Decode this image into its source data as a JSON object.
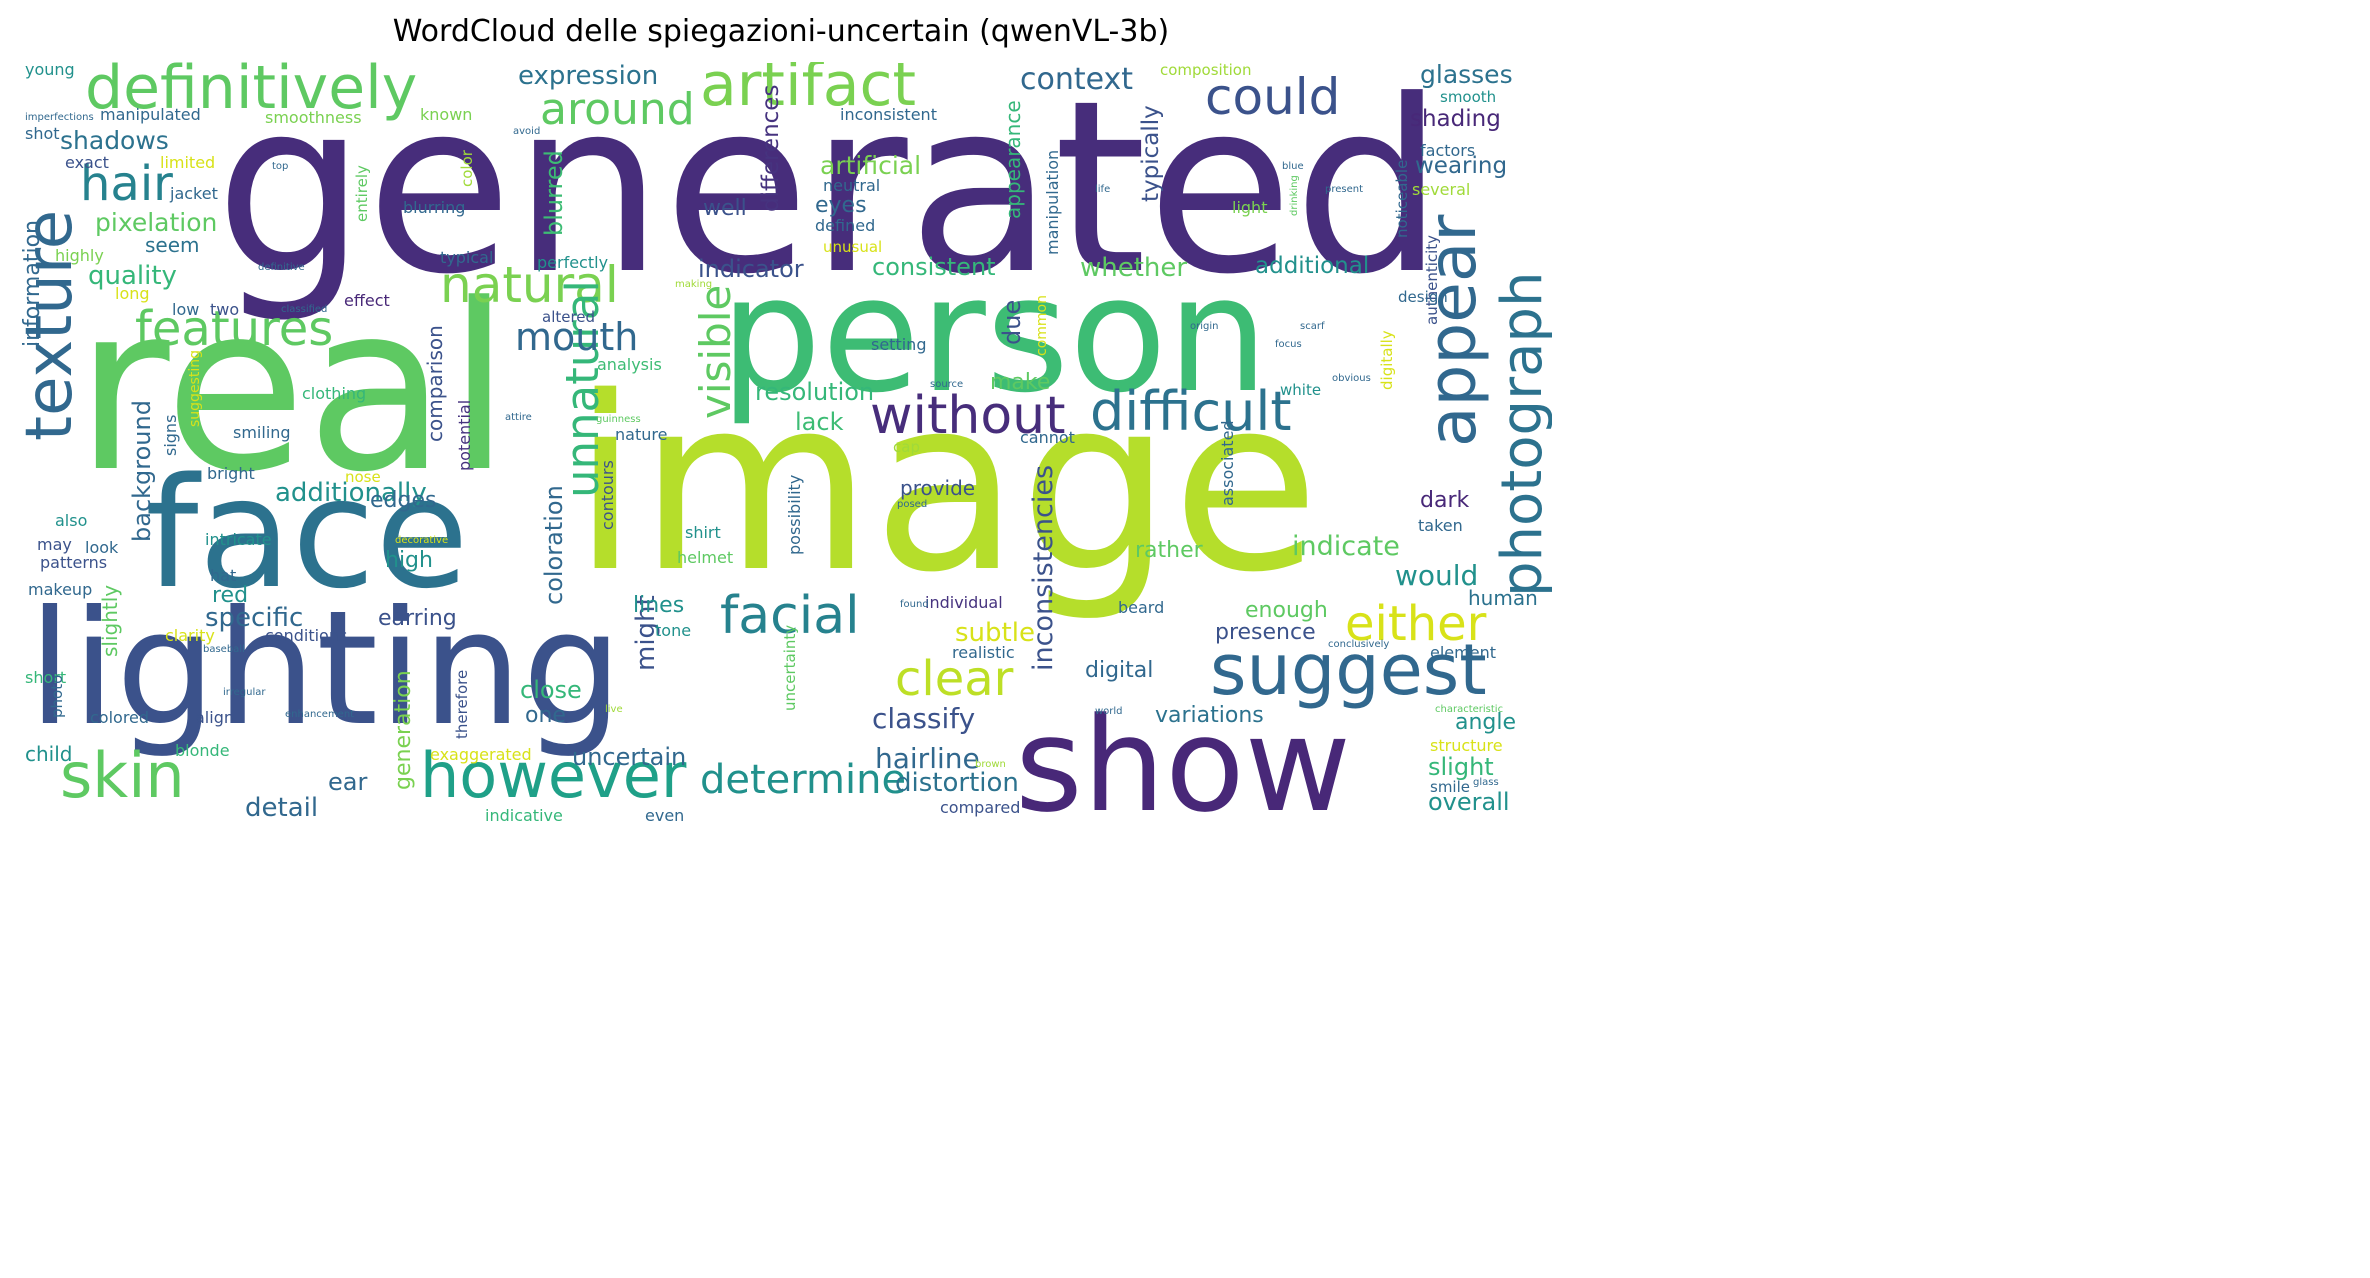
{
  "title": "WordCloud delle spiegazioni-uncertain (qwenVL-3b)",
  "words": [
    {
      "t": "generated",
      "c": "#472d7b"
    },
    {
      "t": "image",
      "c": "#b5de2b"
    },
    {
      "t": "real",
      "c": "#5ec962"
    },
    {
      "t": "person",
      "c": "#3dbc74"
    },
    {
      "t": "lighting",
      "c": "#3b528b"
    },
    {
      "t": "face",
      "c": "#2c728e"
    },
    {
      "t": "show",
      "c": "#482878"
    },
    {
      "t": "definitively",
      "c": "#5ec962"
    },
    {
      "t": "artifact",
      "c": "#7ad151"
    },
    {
      "t": "texture",
      "c": "#31688e"
    },
    {
      "t": "appear",
      "c": "#31688e"
    },
    {
      "t": "photograph",
      "c": "#2c728e"
    },
    {
      "t": "suggest",
      "c": "#31688e"
    },
    {
      "t": "skin",
      "c": "#5ec962"
    },
    {
      "t": "however",
      "c": "#1fa088"
    },
    {
      "t": "difficult",
      "c": "#2c728e"
    },
    {
      "t": "without",
      "c": "#472d7b"
    },
    {
      "t": "could",
      "c": "#3b528b"
    },
    {
      "t": "natural",
      "c": "#7ad151"
    },
    {
      "t": "features",
      "c": "#5ec962"
    },
    {
      "t": "facial",
      "c": "#26828e"
    },
    {
      "t": "either",
      "c": "#d8e219"
    },
    {
      "t": "clear",
      "c": "#bddf26"
    },
    {
      "t": "hair",
      "c": "#26828e"
    },
    {
      "t": "around",
      "c": "#5ec962"
    },
    {
      "t": "unnatural",
      "c": "#35b779"
    },
    {
      "t": "visible",
      "c": "#5ec962"
    },
    {
      "t": "mouth",
      "c": "#31688e"
    },
    {
      "t": "determine",
      "c": "#21918c"
    },
    {
      "t": "context",
      "c": "#31688e"
    },
    {
      "t": "expression",
      "c": "#2c728e"
    },
    {
      "t": "glasses",
      "c": "#2c728e"
    },
    {
      "t": "shading",
      "c": "#482878"
    },
    {
      "t": "wearing",
      "c": "#31688e"
    },
    {
      "t": "shadows",
      "c": "#2c728e"
    },
    {
      "t": "pixelation",
      "c": "#5ec962"
    },
    {
      "t": "quality",
      "c": "#35b779"
    },
    {
      "t": "additionally",
      "c": "#21918c"
    },
    {
      "t": "specific",
      "c": "#31688e"
    },
    {
      "t": "classify",
      "c": "#3b528b"
    },
    {
      "t": "inconsistencies",
      "c": "#3b528b"
    },
    {
      "t": "indicate",
      "c": "#5ec962"
    },
    {
      "t": "would",
      "c": "#21918c"
    },
    {
      "t": "hairline",
      "c": "#31688e"
    },
    {
      "t": "distortion",
      "c": "#2c728e"
    },
    {
      "t": "consistent",
      "c": "#35b779"
    },
    {
      "t": "whether",
      "c": "#5ec962"
    },
    {
      "t": "additional",
      "c": "#21918c"
    },
    {
      "t": "indicator",
      "c": "#3b528b"
    },
    {
      "t": "typically",
      "c": "#3b528b"
    },
    {
      "t": "differences",
      "c": "#46337f"
    },
    {
      "t": "artificial",
      "c": "#7ad151"
    },
    {
      "t": "resolution",
      "c": "#35b779"
    },
    {
      "t": "background",
      "c": "#31688e"
    },
    {
      "t": "information",
      "c": "#31688e"
    },
    {
      "t": "blurred",
      "c": "#3dbc74"
    },
    {
      "t": "coloration",
      "c": "#31688e"
    },
    {
      "t": "might",
      "c": "#3b528b"
    },
    {
      "t": "detail",
      "c": "#31688e"
    },
    {
      "t": "uncertain",
      "c": "#31688e"
    },
    {
      "t": "subtle",
      "c": "#d8e219"
    },
    {
      "t": "presence",
      "c": "#3b528b"
    },
    {
      "t": "enough",
      "c": "#5ec962"
    },
    {
      "t": "rather",
      "c": "#5ec962"
    },
    {
      "t": "human",
      "c": "#2c728e"
    },
    {
      "t": "digital",
      "c": "#31688e"
    },
    {
      "t": "variations",
      "c": "#2c728e"
    },
    {
      "t": "angle",
      "c": "#21918c"
    },
    {
      "t": "slight",
      "c": "#35b779"
    },
    {
      "t": "overall",
      "c": "#21918c"
    },
    {
      "t": "edges",
      "c": "#31688e"
    },
    {
      "t": "lack",
      "c": "#3dbc74"
    },
    {
      "t": "make",
      "c": "#5ec962"
    },
    {
      "t": "due",
      "c": "#3b528b"
    },
    {
      "t": "provide",
      "c": "#3b528b"
    },
    {
      "t": "dark",
      "c": "#482878"
    },
    {
      "t": "close",
      "c": "#35b779"
    },
    {
      "t": "one",
      "c": "#31688e"
    },
    {
      "t": "high",
      "c": "#21918c"
    },
    {
      "t": "earring",
      "c": "#3b528b"
    },
    {
      "t": "red",
      "c": "#21918c"
    },
    {
      "t": "lines",
      "c": "#21918c"
    },
    {
      "t": "comparison",
      "c": "#3b528b"
    },
    {
      "t": "ear",
      "c": "#31688e"
    },
    {
      "t": "generation",
      "c": "#7ad151"
    },
    {
      "t": "slightly",
      "c": "#5ec962"
    },
    {
      "t": "eyes",
      "c": "#31688e"
    },
    {
      "t": "well",
      "c": "#3b528b"
    },
    {
      "t": "seem",
      "c": "#2c728e"
    },
    {
      "t": "appearance",
      "c": "#35b779"
    },
    {
      "t": "young",
      "c": "#21918c"
    },
    {
      "t": "shot",
      "c": "#31688e"
    },
    {
      "t": "manipulated",
      "c": "#31688e"
    },
    {
      "t": "smoothness",
      "c": "#7ad151"
    },
    {
      "t": "known",
      "c": "#7ad151"
    },
    {
      "t": "inconsistent",
      "c": "#31688e"
    },
    {
      "t": "composition",
      "c": "#a0da39"
    },
    {
      "t": "smooth",
      "c": "#21918c"
    },
    {
      "t": "exact",
      "c": "#3b528b"
    },
    {
      "t": "limited",
      "c": "#d8e219"
    },
    {
      "t": "color",
      "c": "#a0da39"
    },
    {
      "t": "jacket",
      "c": "#31688e"
    },
    {
      "t": "factors",
      "c": "#31688e"
    },
    {
      "t": "several",
      "c": "#a0da39"
    },
    {
      "t": "light",
      "c": "#7ad151"
    },
    {
      "t": "neutral",
      "c": "#31688e"
    },
    {
      "t": "defined",
      "c": "#31688e"
    },
    {
      "t": "unusual",
      "c": "#d8e219"
    },
    {
      "t": "highly",
      "c": "#7ad151"
    },
    {
      "t": "entirely",
      "c": "#5ec962"
    },
    {
      "t": "blurring",
      "c": "#31688e"
    },
    {
      "t": "perfectly",
      "c": "#21918c"
    },
    {
      "t": "typical",
      "c": "#31688e"
    },
    {
      "t": "long",
      "c": "#d8e219"
    },
    {
      "t": "low",
      "c": "#31688e"
    },
    {
      "t": "two",
      "c": "#3b528b"
    },
    {
      "t": "effect",
      "c": "#482878"
    },
    {
      "t": "altered",
      "c": "#3b528b"
    },
    {
      "t": "analysis",
      "c": "#3dbc74"
    },
    {
      "t": "setting",
      "c": "#31688e"
    },
    {
      "t": "manipulation",
      "c": "#31688e"
    },
    {
      "t": "common",
      "c": "#d8e219"
    },
    {
      "t": "clothing",
      "c": "#35b779"
    },
    {
      "t": "smiling",
      "c": "#31688e"
    },
    {
      "t": "signs",
      "c": "#31688e"
    },
    {
      "t": "suggesting",
      "c": "#d8e219"
    },
    {
      "t": "potential",
      "c": "#46337f"
    },
    {
      "t": "nature",
      "c": "#31688e"
    },
    {
      "t": "cap",
      "c": "#a0da39"
    },
    {
      "t": "cannot",
      "c": "#31688e"
    },
    {
      "t": "white",
      "c": "#21918c"
    },
    {
      "t": "bright",
      "c": "#31688e"
    },
    {
      "t": "nose",
      "c": "#d8e219"
    },
    {
      "t": "also",
      "c": "#21918c"
    },
    {
      "t": "may",
      "c": "#3b528b"
    },
    {
      "t": "look",
      "c": "#31688e"
    },
    {
      "t": "intricate",
      "c": "#21918c"
    },
    {
      "t": "patterns",
      "c": "#3b528b"
    },
    {
      "t": "hat",
      "c": "#31688e"
    },
    {
      "t": "makeup",
      "c": "#31688e"
    },
    {
      "t": "shirt",
      "c": "#21918c"
    },
    {
      "t": "helmet",
      "c": "#5ec962"
    },
    {
      "t": "contours",
      "c": "#3b528b"
    },
    {
      "t": "possibility",
      "c": "#31688e"
    },
    {
      "t": "taken",
      "c": "#31688e"
    },
    {
      "t": "associated",
      "c": "#31688e"
    },
    {
      "t": "beard",
      "c": "#31688e"
    },
    {
      "t": "individual",
      "c": "#46337f"
    },
    {
      "t": "realistic",
      "c": "#31688e"
    },
    {
      "t": "element",
      "c": "#31688e"
    },
    {
      "t": "clarity",
      "c": "#d8e219"
    },
    {
      "t": "conditions",
      "c": "#3b528b"
    },
    {
      "t": "tone",
      "c": "#21918c"
    },
    {
      "t": "short",
      "c": "#35b779"
    },
    {
      "t": "photo",
      "c": "#31688e"
    },
    {
      "t": "align",
      "c": "#3b528b"
    },
    {
      "t": "colored",
      "c": "#31688e"
    },
    {
      "t": "child",
      "c": "#21918c"
    },
    {
      "t": "blonde",
      "c": "#35b779"
    },
    {
      "t": "therefore",
      "c": "#3b528b"
    },
    {
      "t": "exaggerated",
      "c": "#d8e219"
    },
    {
      "t": "indicative",
      "c": "#35b779"
    },
    {
      "t": "even",
      "c": "#31688e"
    },
    {
      "t": "compared",
      "c": "#3b528b"
    },
    {
      "t": "uncertainty",
      "c": "#5ec962"
    },
    {
      "t": "structure",
      "c": "#d8e219"
    },
    {
      "t": "smile",
      "c": "#31688e"
    },
    {
      "t": "noticeable",
      "c": "#31688e"
    },
    {
      "t": "authenticity",
      "c": "#3b528b"
    },
    {
      "t": "design",
      "c": "#31688e"
    },
    {
      "t": "digitally",
      "c": "#d8e219"
    },
    {
      "t": "imperfections",
      "c": "#31688e"
    },
    {
      "t": "avoid",
      "c": "#31688e"
    },
    {
      "t": "top",
      "c": "#31688e"
    },
    {
      "t": "life",
      "c": "#31688e"
    },
    {
      "t": "present",
      "c": "#31688e"
    },
    {
      "t": "blue",
      "c": "#31688e"
    },
    {
      "t": "drinking",
      "c": "#5ec962"
    },
    {
      "t": "definitive",
      "c": "#31688e"
    },
    {
      "t": "classified",
      "c": "#31688e"
    },
    {
      "t": "making",
      "c": "#a0da39"
    },
    {
      "t": "origin",
      "c": "#31688e"
    },
    {
      "t": "scarf",
      "c": "#31688e"
    },
    {
      "t": "focus",
      "c": "#31688e"
    },
    {
      "t": "obvious",
      "c": "#31688e"
    },
    {
      "t": "source",
      "c": "#31688e"
    },
    {
      "t": "attire",
      "c": "#31688e"
    },
    {
      "t": "guinness",
      "c": "#5ec962"
    },
    {
      "t": "posed",
      "c": "#31688e"
    },
    {
      "t": "decorative",
      "c": "#d8e219"
    },
    {
      "t": "found",
      "c": "#31688e"
    },
    {
      "t": "baseball",
      "c": "#31688e"
    },
    {
      "t": "conclusively",
      "c": "#31688e"
    },
    {
      "t": "irregular",
      "c": "#31688e"
    },
    {
      "t": "enhancement",
      "c": "#31688e"
    },
    {
      "t": "live",
      "c": "#a0da39"
    },
    {
      "t": "world",
      "c": "#31688e"
    },
    {
      "t": "brown",
      "c": "#a0da39"
    },
    {
      "t": "characteristic",
      "c": "#5ec962"
    },
    {
      "t": "glass",
      "c": "#31688e"
    }
  ]
}
